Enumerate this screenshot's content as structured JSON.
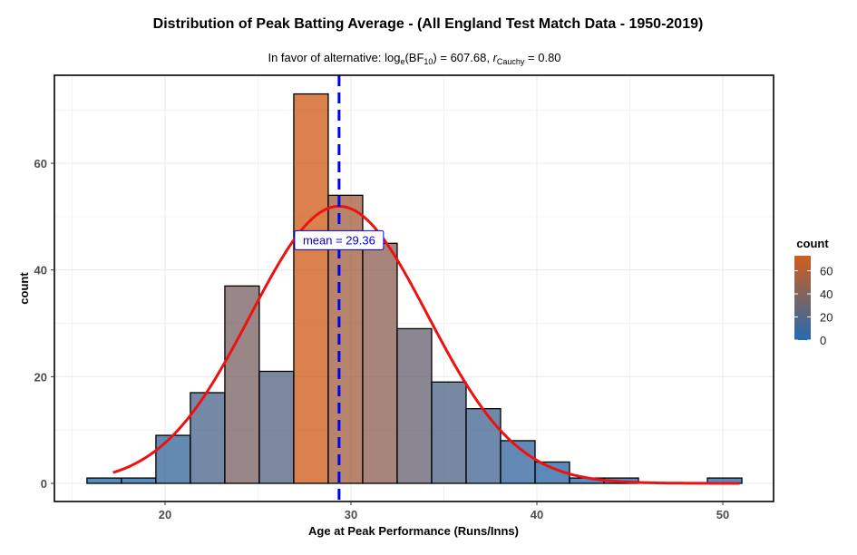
{
  "chart_data": {
    "type": "bar",
    "title": "Distribution of Peak Batting Average - (All England Test Match Data - 1950-2019)",
    "subtitle": {
      "prefix": "In favor of alternative: log",
      "sub1": "e",
      "mid": "(BF",
      "sub2": "10",
      "mid2": ") = 607.68, ",
      "r": "r",
      "sub3": "Cauchy",
      "suffix": " = 0.80"
    },
    "xlabel": "Age at Peak Performance (Runs/Inns)",
    "ylabel": "count",
    "xlim": [
      14.05,
      52.73
    ],
    "ylim": [
      -3.4,
      76.5
    ],
    "xticks": [
      20,
      30,
      40,
      50
    ],
    "yticks": [
      0,
      20,
      40,
      60
    ],
    "bin_start": 15.8,
    "bin_width": 1.854,
    "values": [
      1,
      1,
      9,
      17,
      37,
      21,
      73,
      54,
      45,
      29,
      19,
      14,
      8,
      4,
      1,
      1,
      0,
      0,
      1
    ],
    "normal_fit": {
      "mean": 29.36,
      "sd": 4.77,
      "n": 335,
      "x_range": [
        17.2,
        51
      ]
    },
    "mean_label": "mean = 29.36",
    "mean": 29.36,
    "legend": {
      "title": "count",
      "ticks": [
        0,
        20,
        40,
        60
      ],
      "max": 73,
      "position": "right"
    },
    "colors": {
      "low": "#0b5aa6",
      "high": "#cc4c02",
      "curve": "#ee1111",
      "mean_line": "#0000ee"
    }
  }
}
